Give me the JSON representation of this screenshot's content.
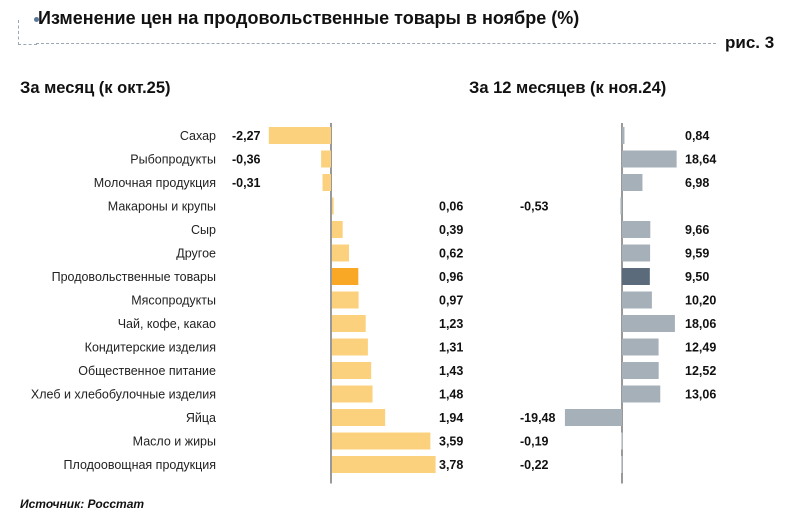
{
  "title": "Изменение цен на продовольственные товары в ноябре (%)",
  "figure_label": "рис. 3",
  "source": "Источник: Росстат",
  "colors": {
    "monthly_bar": "#fcd17e",
    "monthly_highlight": "#f9a825",
    "annual_bar": "#a6b0b9",
    "annual_highlight": "#5c6b7b",
    "axis": "#333333"
  },
  "chart_data": [
    {
      "type": "bar",
      "orientation": "horizontal",
      "title": "За месяц (к окт.25)",
      "categories": [
        "Сахар",
        "Рыбопродукты",
        "Молочная продукция",
        "Макароны и крупы",
        "Сыр",
        "Другое",
        "Продовольственные товары",
        "Мясопродукты",
        "Чай, кофе, какао",
        "Кондитерские изделия",
        "Общественное питание",
        "Хлеб и хлебобулочные изделия",
        "Яйца",
        "Масло и жиры",
        "Плодоовощная продукция"
      ],
      "values": [
        -2.27,
        -0.36,
        -0.31,
        0.06,
        0.39,
        0.62,
        0.96,
        0.97,
        1.23,
        1.31,
        1.43,
        1.48,
        1.94,
        3.59,
        3.78
      ],
      "labels": [
        "-2,27",
        "-0,36",
        "-0,31",
        "0,06",
        "0,39",
        "0,62",
        "0,96",
        "0,97",
        "1,23",
        "1,31",
        "1,43",
        "1,48",
        "1,94",
        "3,59",
        "3,78"
      ],
      "highlight": "Продовольственные товары"
    },
    {
      "type": "bar",
      "orientation": "horizontal",
      "title": "За 12 месяцев (к ноя.24)",
      "categories": [
        "Сахар",
        "Рыбопродукты",
        "Молочная продукция",
        "Макароны и крупы",
        "Сыр",
        "Другое",
        "Продовольственные товары",
        "Мясопродукты",
        "Чай, кофе, какао",
        "Кондитерские изделия",
        "Общественное питание",
        "Хлеб и хлебобулочные изделия",
        "Яйца",
        "Масло и жиры",
        "Плодоовощная продукция"
      ],
      "values": [
        0.84,
        18.64,
        6.98,
        -0.53,
        9.66,
        9.59,
        9.5,
        10.2,
        18.06,
        12.49,
        12.52,
        13.06,
        -19.48,
        -0.19,
        -0.22
      ],
      "labels": [
        "0,84",
        "18,64",
        "6,98",
        "-0,53",
        "9,66",
        "9,59",
        "9,50",
        "10,20",
        "18,06",
        "12,49",
        "12,52",
        "13,06",
        "-19,48",
        "-0,19",
        "-0,22"
      ],
      "highlight": "Продовольственные товары"
    }
  ]
}
